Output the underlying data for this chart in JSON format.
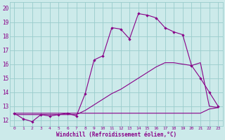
{
  "xlabel": "Windchill (Refroidissement éolien,°C)",
  "hours": [
    0,
    1,
    2,
    3,
    4,
    5,
    6,
    7,
    8,
    9,
    10,
    11,
    12,
    13,
    14,
    15,
    16,
    17,
    18,
    19,
    20,
    21,
    22,
    23
  ],
  "windchill": [
    12.5,
    12.1,
    11.9,
    12.4,
    12.3,
    12.4,
    12.5,
    12.3,
    13.9,
    16.3,
    16.6,
    18.6,
    18.5,
    17.8,
    19.6,
    19.5,
    19.3,
    18.6,
    18.3,
    18.1,
    15.9,
    15.0,
    14.0,
    13.0
  ],
  "line_flat": [
    12.5,
    12.5,
    12.5,
    12.5,
    12.5,
    12.5,
    12.5,
    12.5,
    12.5,
    12.5,
    12.5,
    12.5,
    12.5,
    12.5,
    12.5,
    12.5,
    12.5,
    12.5,
    12.5,
    12.5,
    12.5,
    12.5,
    12.8,
    12.9
  ],
  "line_diag": [
    12.4,
    12.4,
    12.4,
    12.4,
    12.4,
    12.4,
    12.4,
    12.4,
    12.7,
    13.1,
    13.5,
    13.9,
    14.2,
    14.6,
    15.0,
    15.4,
    15.8,
    16.1,
    16.1,
    16.0,
    15.9,
    16.1,
    13.0,
    12.9
  ],
  "bg_color": "#cceaea",
  "line_color": "#880088",
  "grid_color": "#99cccc",
  "ylim": [
    11.6,
    20.4
  ],
  "xlim": [
    -0.5,
    23.5
  ],
  "yticks": [
    12,
    13,
    14,
    15,
    16,
    17,
    18,
    19,
    20
  ],
  "xticks": [
    0,
    1,
    2,
    3,
    4,
    5,
    6,
    7,
    8,
    9,
    10,
    11,
    12,
    13,
    14,
    15,
    16,
    17,
    18,
    19,
    20,
    21,
    22,
    23
  ]
}
